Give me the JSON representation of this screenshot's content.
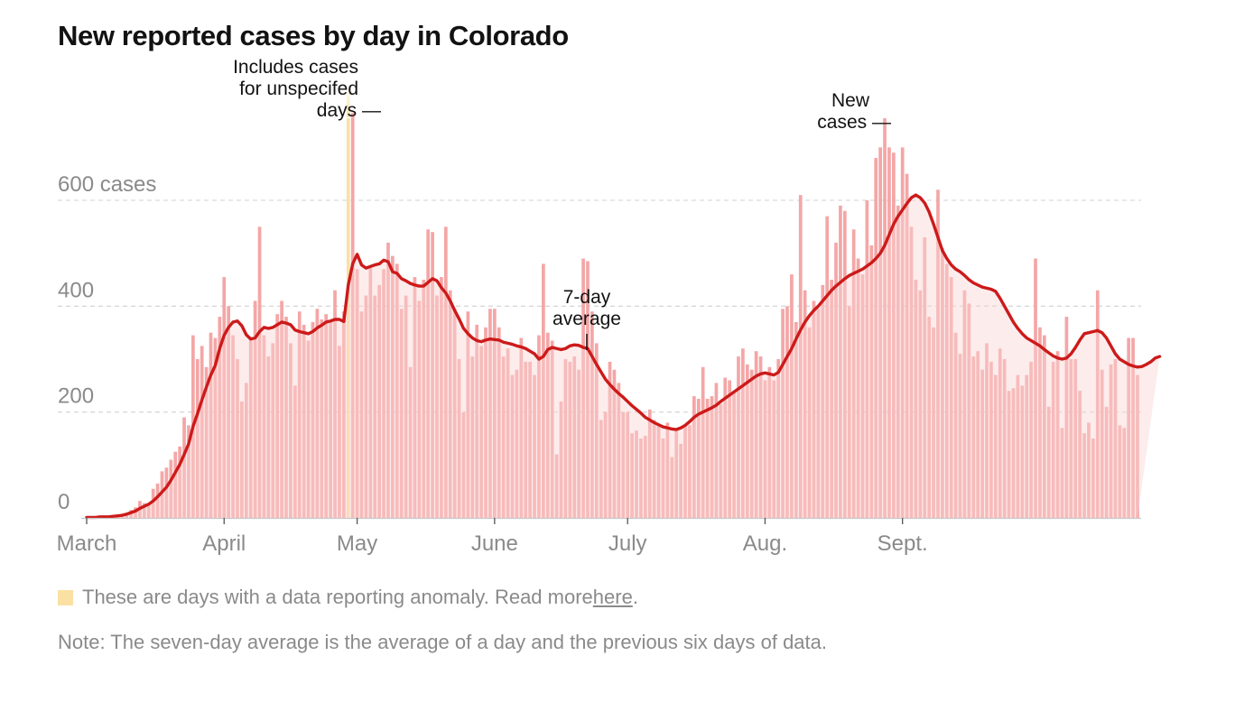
{
  "title": "New reported cases by day in Colorado",
  "colors": {
    "bar": "#f4a6a6",
    "bar_anomaly": "#fbe0a3",
    "average_line": "#cc1a1a",
    "average_fill": "#fbd4d4",
    "gridline": "#d9d9d9",
    "axis_text": "#8a8a8a",
    "annotation_text": "#121212"
  },
  "chart_data": {
    "type": "bar",
    "start_date": "2020-03-01",
    "y_ticks": [
      {
        "value": 0,
        "label": "0"
      },
      {
        "value": 200,
        "label": "200"
      },
      {
        "value": 400,
        "label": "400"
      },
      {
        "value": 600,
        "label": "600 cases"
      }
    ],
    "x_ticks": [
      {
        "date": "2020-03-01",
        "label": "March"
      },
      {
        "date": "2020-04-01",
        "label": "April"
      },
      {
        "date": "2020-05-01",
        "label": "May"
      },
      {
        "date": "2020-06-01",
        "label": "June"
      },
      {
        "date": "2020-07-01",
        "label": "July"
      },
      {
        "date": "2020-08-01",
        "label": "Aug."
      },
      {
        "date": "2020-09-01",
        "label": "Sept."
      }
    ],
    "ylim": [
      0,
      760
    ],
    "grid": true,
    "series": [
      {
        "name": "New cases",
        "values": [
          1,
          0,
          1,
          2,
          1,
          2,
          3,
          5,
          4,
          10,
          15,
          20,
          32,
          28,
          25,
          55,
          65,
          88,
          95,
          110,
          125,
          135,
          190,
          175,
          345,
          300,
          325,
          285,
          350,
          340,
          380,
          455,
          400,
          345,
          300,
          220,
          255,
          340,
          410,
          550,
          345,
          305,
          330,
          385,
          410,
          380,
          330,
          250,
          390,
          365,
          335,
          370,
          395,
          375,
          385,
          370,
          430,
          325,
          390,
          755,
          765,
          470,
          390,
          420,
          475,
          420,
          440,
          470,
          520,
          495,
          480,
          395,
          420,
          285,
          455,
          410,
          450,
          545,
          540,
          420,
          455,
          550,
          430,
          395,
          300,
          200,
          390,
          305,
          365,
          325,
          360,
          395,
          395,
          360,
          305,
          320,
          270,
          280,
          340,
          295,
          295,
          270,
          345,
          480,
          350,
          335,
          120,
          220,
          300,
          295,
          305,
          280,
          490,
          485,
          390,
          330,
          185,
          200,
          295,
          280,
          255,
          200,
          200,
          160,
          165,
          150,
          155,
          205,
          185,
          175,
          150,
          180,
          115,
          165,
          140,
          175,
          175,
          230,
          225,
          285,
          225,
          230,
          255,
          215,
          265,
          260,
          240,
          305,
          320,
          290,
          280,
          315,
          305,
          260,
          285,
          260,
          300,
          395,
          400,
          460,
          370,
          610,
          430,
          360,
          410,
          395,
          440,
          570,
          450,
          520,
          590,
          580,
          400,
          545,
          490,
          460,
          600,
          515,
          680,
          700,
          755,
          700,
          690,
          590,
          700,
          650,
          550,
          450,
          430,
          530,
          380,
          360,
          620,
          510,
          480,
          455,
          350,
          310,
          430,
          405,
          305,
          315,
          280,
          330,
          295,
          270,
          320,
          300,
          240,
          245,
          270,
          250,
          270,
          295,
          490,
          360,
          345,
          210,
          295,
          315,
          170,
          380,
          300,
          300,
          240,
          160,
          180,
          150,
          430,
          280,
          210,
          290,
          300,
          175,
          170,
          340,
          340,
          270
        ]
      },
      {
        "name": "7-day average",
        "values": [
          1,
          1,
          1,
          2,
          2,
          2,
          3,
          4,
          5,
          7,
          10,
          13,
          18,
          22,
          26,
          32,
          40,
          49,
          58,
          71,
          86,
          101,
          120,
          140,
          173,
          197,
          223,
          247,
          270,
          288,
          320,
          345,
          360,
          370,
          372,
          363,
          346,
          338,
          340,
          352,
          360,
          358,
          360,
          365,
          370,
          368,
          365,
          355,
          352,
          350,
          348,
          352,
          359,
          364,
          370,
          372,
          375,
          375,
          371,
          440,
          480,
          498,
          478,
          472,
          475,
          478,
          480,
          487,
          484,
          465,
          462,
          452,
          448,
          443,
          440,
          438,
          438,
          445,
          452,
          448,
          435,
          425,
          410,
          392,
          376,
          358,
          348,
          340,
          335,
          333,
          336,
          338,
          337,
          336,
          332,
          330,
          328,
          325,
          323,
          320,
          315,
          310,
          300,
          305,
          318,
          322,
          320,
          318,
          320,
          325,
          327,
          326,
          322,
          320,
          305,
          290,
          276,
          262,
          252,
          243,
          235,
          228,
          220,
          212,
          205,
          198,
          190,
          185,
          180,
          176,
          172,
          170,
          168,
          167,
          170,
          175,
          182,
          190,
          196,
          200,
          204,
          208,
          213,
          220,
          226,
          232,
          238,
          244,
          250,
          256,
          262,
          268,
          272,
          274,
          272,
          270,
          275,
          290,
          305,
          320,
          338,
          355,
          370,
          382,
          392,
          400,
          410,
          420,
          430,
          438,
          445,
          452,
          458,
          462,
          466,
          470,
          476,
          482,
          490,
          500,
          515,
          535,
          555,
          570,
          582,
          594,
          605,
          610,
          605,
          595,
          578,
          555,
          530,
          505,
          490,
          478,
          470,
          465,
          458,
          450,
          444,
          440,
          436,
          434,
          432,
          428,
          415,
          400,
          385,
          370,
          358,
          348,
          340,
          335,
          330,
          325,
          318,
          312,
          306,
          302,
          300,
          302,
          310,
          322,
          336,
          348,
          350,
          352,
          354,
          350,
          340,
          325,
          310,
          300,
          295,
          290,
          287,
          285,
          286,
          290,
          295,
          302,
          305
        ]
      }
    ],
    "anomaly_bar_index": 59
  },
  "annotations": {
    "anomaly_note": [
      "Includes cases",
      "for unspecifed",
      "days —"
    ],
    "new_cases": [
      "New",
      "cases —"
    ],
    "average": [
      "7-day",
      "average"
    ]
  },
  "legend": {
    "text": "These are days with a data reporting anomaly. Read more ",
    "link": "here",
    "suffix": "."
  },
  "note": "Note: The seven-day average is the average of a day and the previous six days of data."
}
